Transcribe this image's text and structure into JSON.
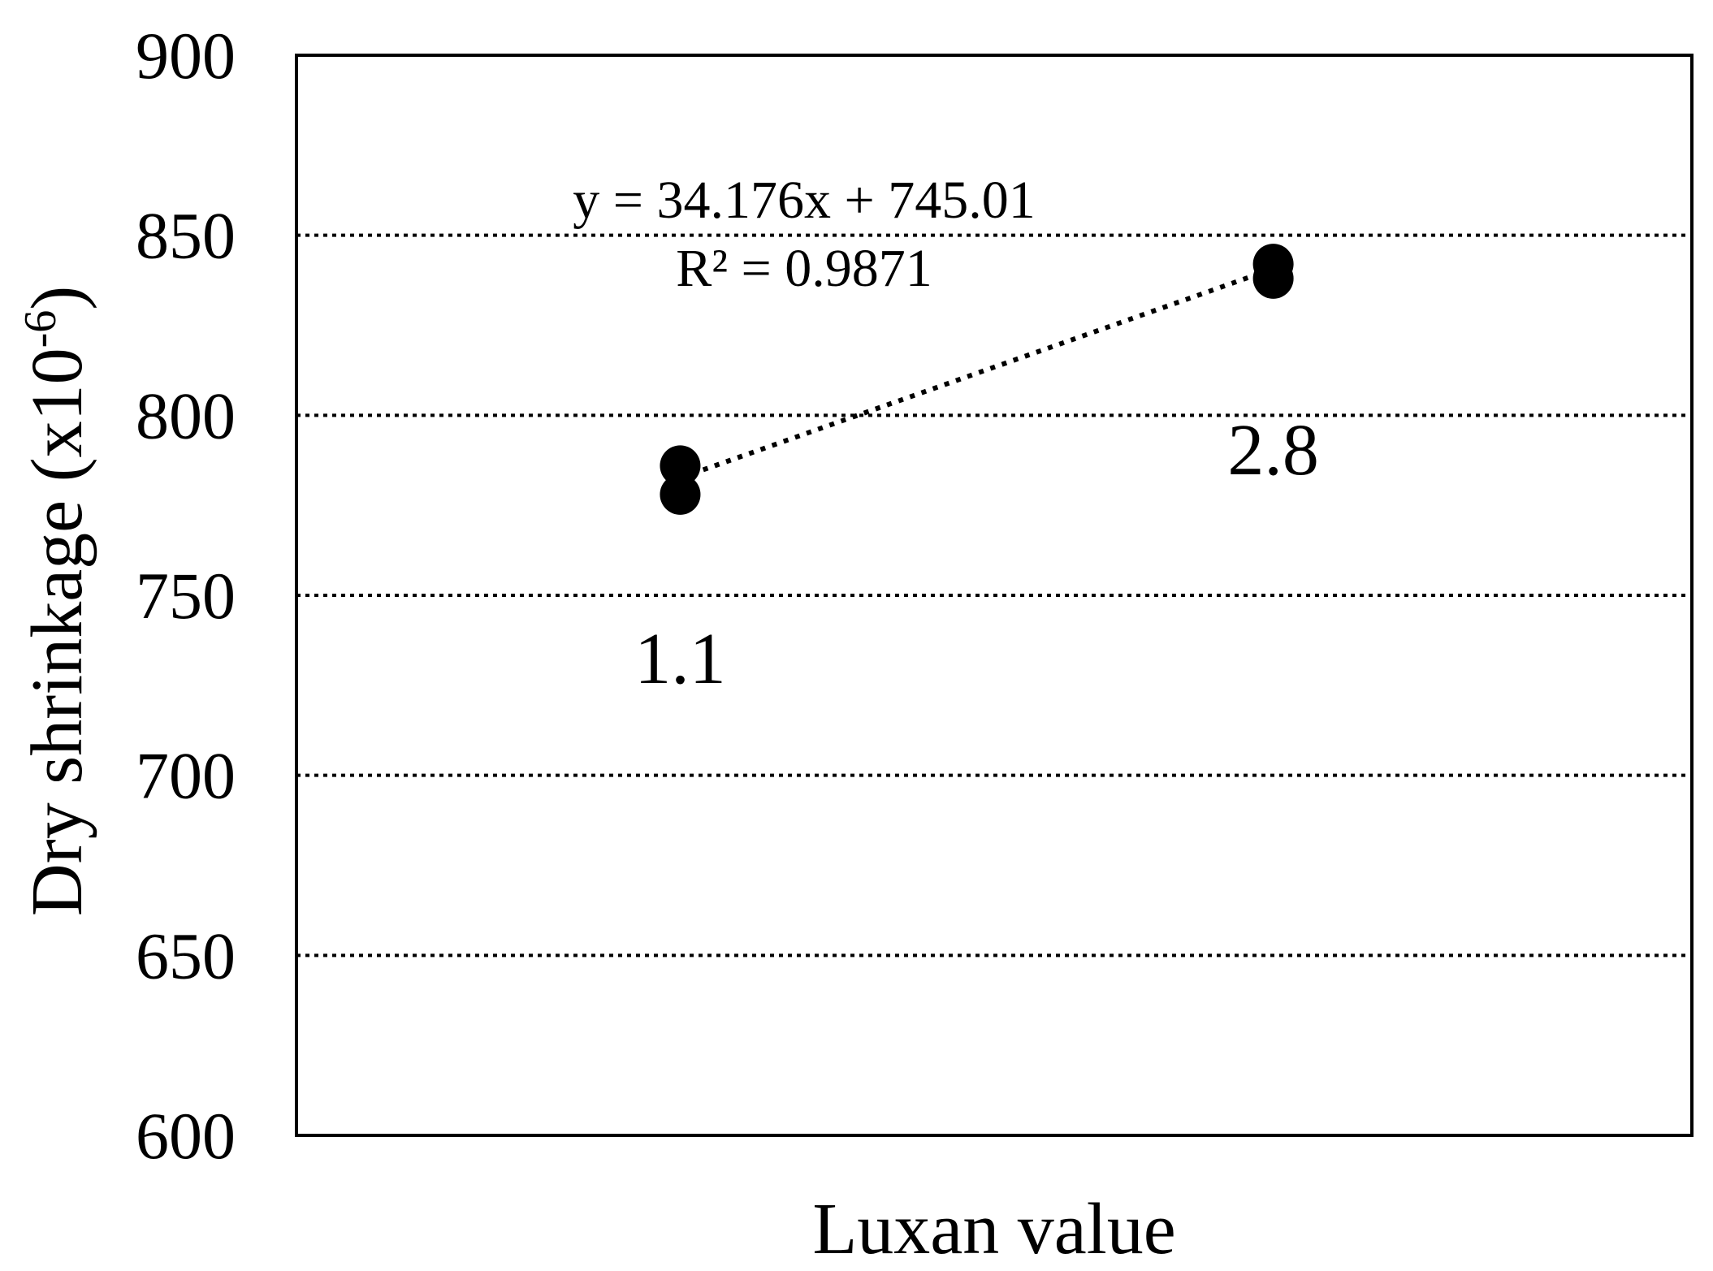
{
  "chart_data": {
    "type": "scatter",
    "xlabel": "Luxan value",
    "ylabel_main": "Dry shrinkage (x10",
    "ylabel_exp": "-6",
    "ylabel_close": ")",
    "ylim": [
      600,
      900
    ],
    "yticks": [
      600,
      650,
      700,
      750,
      800,
      850,
      900
    ],
    "ytick_labels": [
      "600",
      "650",
      "700",
      "750",
      "800",
      "850",
      "900"
    ],
    "xlim": [
      0,
      4
    ],
    "grid": "horizontal dotted",
    "points": [
      {
        "x": 1.1,
        "y": 786
      },
      {
        "x": 1.1,
        "y": 778
      },
      {
        "x": 2.8,
        "y": 842
      },
      {
        "x": 2.8,
        "y": 838
      }
    ],
    "point_labels": [
      {
        "x": 1.1,
        "text": "1.1"
      },
      {
        "x": 2.8,
        "text": "2.8"
      }
    ],
    "trendline": {
      "slope": 34.176,
      "intercept": 745.01,
      "style": "dotted",
      "equation": "y = 34.176x + 745.01",
      "r2_text": "R² = 0.9871"
    }
  }
}
